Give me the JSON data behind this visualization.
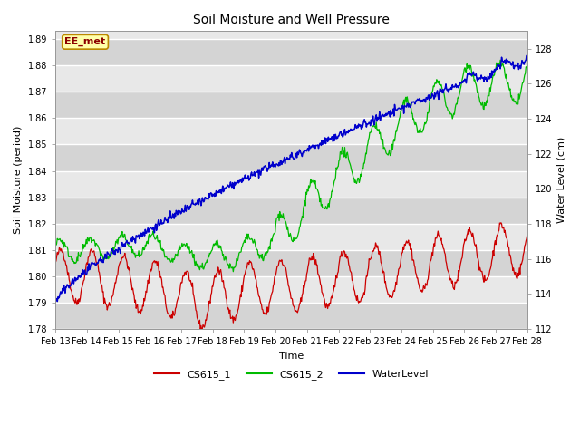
{
  "title": "Soil Moisture and Well Pressure",
  "xlabel": "Time",
  "ylabel_left": "Soil Moisture (period)",
  "ylabel_right": "Water Level (cm)",
  "annotation_text": "EE_met",
  "left_ylim": [
    1.78,
    1.893
  ],
  "right_ylim": [
    112,
    129
  ],
  "left_yticks": [
    1.78,
    1.79,
    1.8,
    1.81,
    1.82,
    1.83,
    1.84,
    1.85,
    1.86,
    1.87,
    1.88,
    1.89
  ],
  "right_yticks": [
    112,
    114,
    116,
    118,
    120,
    122,
    124,
    126,
    128
  ],
  "xtick_labels": [
    "Feb 13",
    "Feb 14",
    "Feb 15",
    "Feb 16",
    "Feb 17",
    "Feb 18",
    "Feb 19",
    "Feb 20",
    "Feb 21",
    "Feb 22",
    "Feb 23",
    "Feb 24",
    "Feb 25",
    "Feb 26",
    "Feb 27",
    "Feb 28"
  ],
  "colors": {
    "CS615_1": "#cc0000",
    "CS615_2": "#00bb00",
    "WaterLevel": "#0000cc",
    "fig_bg": "#ffffff",
    "plot_bg_light": "#e8e8e8",
    "plot_bg_dark": "#d8d8d8",
    "grid_color": "#ffffff",
    "annotation_bg": "#ffffaa",
    "annotation_border": "#bb8800"
  }
}
